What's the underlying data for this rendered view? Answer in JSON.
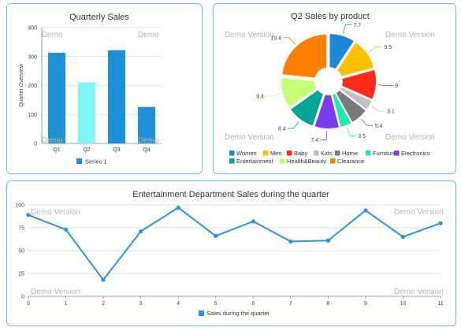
{
  "watermark": "Demo Version",
  "watermark_short": "Demo",
  "chart_data": [
    {
      "type": "bar",
      "title": "Quarterly Sales",
      "ylabel": "Quarter Overview",
      "xlabel": "",
      "categories": [
        "Q1",
        "Q2",
        "Q3",
        "Q4"
      ],
      "series": [
        {
          "name": "Series 1",
          "values": [
            313,
            211,
            322,
            126
          ]
        }
      ],
      "bar_colors": [
        "#1e90d6",
        "#7ff5f5",
        "#1e90d6",
        "#1e90d6"
      ],
      "ylim": [
        0,
        400
      ],
      "yticks": [
        0,
        100,
        200,
        300,
        400
      ],
      "grid": true,
      "legend": "bottom"
    },
    {
      "type": "pie",
      "title": "Q2 Sales by product",
      "labels": [
        "Women",
        "Men",
        "Baby",
        "Kids",
        "Home",
        "Furniture",
        "Electronics",
        "Entertainment",
        "Health&Beauty",
        "Clearance"
      ],
      "values": [
        7.7,
        9.5,
        9,
        3.1,
        5.4,
        3.5,
        7.4,
        8.4,
        9.4,
        19.4
      ],
      "colors": [
        "#1e88d8",
        "#ffc000",
        "#ff2a1a",
        "#c0c0c0",
        "#7a7a7a",
        "#1de9b6",
        "#7b3cf0",
        "#00a693",
        "#c6ff7a",
        "#ff8000"
      ],
      "legend": "bottom"
    },
    {
      "type": "line",
      "title": "Entertainment Department Sales during the quarter",
      "x": [
        0,
        1,
        2,
        3,
        4,
        5,
        6,
        7,
        8,
        9,
        10,
        11
      ],
      "series": [
        {
          "name": "Sales during the quarter",
          "values": [
            89,
            73,
            18,
            71,
            97,
            66,
            82,
            60,
            61,
            94,
            65,
            80
          ]
        }
      ],
      "color": "#2b94e0",
      "ylim": [
        0,
        100
      ],
      "yticks": [
        0,
        25,
        50,
        75,
        100
      ],
      "grid": true,
      "legend": "bottom"
    }
  ]
}
